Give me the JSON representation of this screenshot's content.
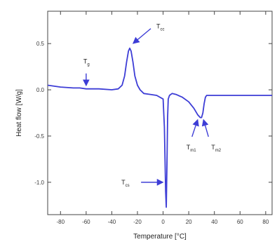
{
  "chart_data": {
    "type": "line",
    "xlabel": "Temperature [°C]",
    "ylabel": "Heat flow [W/g]",
    "xlim": [
      -90,
      85
    ],
    "ylim": [
      -1.35,
      0.85
    ],
    "x_ticks": [
      -80,
      -60,
      -40,
      -20,
      0,
      20,
      40,
      60,
      80
    ],
    "y_ticks": [
      0.5,
      0.0,
      -0.5,
      -1.0
    ],
    "x_tick_labels": [
      "-80",
      "-60",
      "-40",
      "-20",
      "0",
      "20",
      "40",
      "60",
      "80"
    ],
    "y_tick_labels": [
      "0.5",
      "0.0",
      "-0.5",
      "-1.0"
    ],
    "grid": false,
    "series": [
      {
        "color": "#3d3dd6",
        "x": [
          -90,
          -80,
          -70,
          -65,
          -60,
          -50,
          -40,
          -35,
          -32,
          -30,
          -28.5,
          -27,
          -26,
          -25,
          -23.5,
          -22,
          -20,
          -18,
          -15,
          -10,
          -5,
          0,
          1,
          2,
          2.5,
          3,
          3.5,
          4,
          5,
          7,
          10,
          15,
          20,
          24,
          27,
          29,
          30,
          31,
          32,
          33,
          34,
          36,
          40,
          50,
          60,
          70,
          85
        ],
        "y": [
          0.05,
          0.03,
          0.02,
          0.02,
          0.01,
          0.01,
          0.0,
          0.01,
          0.05,
          0.15,
          0.3,
          0.42,
          0.45,
          0.42,
          0.3,
          0.15,
          0.05,
          0.0,
          -0.04,
          -0.05,
          -0.06,
          -0.1,
          -0.4,
          -1.1,
          -1.27,
          -0.8,
          -0.3,
          -0.1,
          -0.06,
          -0.04,
          -0.05,
          -0.08,
          -0.13,
          -0.2,
          -0.27,
          -0.3,
          -0.3,
          -0.25,
          -0.15,
          -0.08,
          -0.06,
          -0.06,
          -0.06,
          -0.06,
          -0.06,
          -0.06,
          -0.06
        ]
      }
    ],
    "annotations": [
      {
        "label": "T",
        "sub": "g",
        "x": -60,
        "y": 0.01,
        "arrow": "down"
      },
      {
        "label": "T",
        "sub": "cc",
        "x": -26,
        "y": 0.45,
        "arrow": "diagonal"
      },
      {
        "label": "T",
        "sub": "cs",
        "x": 2.5,
        "y": -1.0,
        "arrow": "right"
      },
      {
        "label": "T",
        "sub": "m1",
        "x": 28,
        "y": -0.28,
        "arrow": "up-right"
      },
      {
        "label": "T",
        "sub": "m2",
        "x": 31,
        "y": -0.28,
        "arrow": "up-left"
      }
    ]
  }
}
